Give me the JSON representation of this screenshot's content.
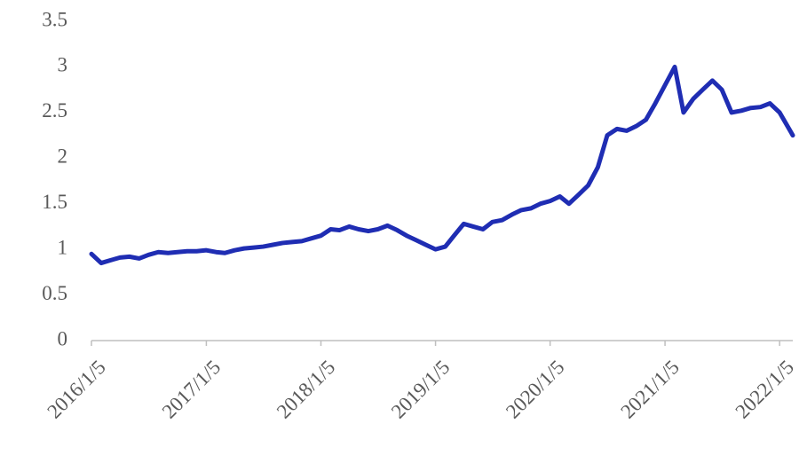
{
  "chart_data": {
    "type": "line",
    "x": [
      "2016/1/5",
      "2016/2/5",
      "2016/3/5",
      "2016/4/5",
      "2016/5/5",
      "2016/6/5",
      "2016/7/5",
      "2016/8/5",
      "2016/9/5",
      "2016/10/5",
      "2016/11/5",
      "2016/12/5",
      "2017/1/5",
      "2017/2/5",
      "2017/3/5",
      "2017/4/5",
      "2017/5/5",
      "2017/6/5",
      "2017/7/5",
      "2017/8/5",
      "2017/9/5",
      "2017/10/5",
      "2017/11/5",
      "2017/12/5",
      "2018/1/5",
      "2018/2/5",
      "2018/3/5",
      "2018/4/5",
      "2018/5/5",
      "2018/6/5",
      "2018/7/5",
      "2018/8/5",
      "2018/9/5",
      "2018/10/5",
      "2018/11/5",
      "2018/12/5",
      "2019/1/5",
      "2019/2/5",
      "2019/3/5",
      "2019/4/5",
      "2019/5/5",
      "2019/6/5",
      "2019/7/5",
      "2019/8/5",
      "2019/9/5",
      "2019/10/5",
      "2019/11/5",
      "2019/12/5",
      "2020/1/5",
      "2020/2/5",
      "2020/3/5",
      "2020/4/5",
      "2020/5/5",
      "2020/6/5",
      "2020/7/5",
      "2020/8/5",
      "2020/9/5",
      "2020/10/5",
      "2020/11/5",
      "2020/12/5",
      "2021/1/5",
      "2021/2/5",
      "2021/3/5",
      "2021/4/5",
      "2021/5/5",
      "2021/6/5",
      "2021/7/5",
      "2021/8/5",
      "2021/9/5",
      "2021/10/5",
      "2021/11/5",
      "2021/12/5",
      "2022/1/5",
      "2022/2/16"
    ],
    "series": [
      {
        "color": "#1f2db3",
        "values": [
          0.95,
          0.85,
          0.88,
          0.91,
          0.92,
          0.9,
          0.94,
          0.97,
          0.96,
          0.97,
          0.98,
          0.98,
          0.99,
          0.97,
          0.96,
          0.99,
          1.01,
          1.02,
          1.03,
          1.05,
          1.07,
          1.08,
          1.09,
          1.12,
          1.15,
          1.22,
          1.21,
          1.25,
          1.22,
          1.2,
          1.22,
          1.26,
          1.21,
          1.15,
          1.1,
          1.05,
          1.0,
          1.03,
          1.15,
          1.28,
          1.25,
          1.22,
          1.3,
          1.32,
          1.38,
          1.43,
          1.45,
          1.5,
          1.53,
          1.58,
          1.5,
          1.6,
          1.7,
          1.9,
          2.25,
          2.32,
          2.3,
          2.35,
          2.42,
          2.6,
          2.8,
          3.0,
          2.5,
          2.65,
          2.75,
          2.85,
          2.75,
          2.5,
          2.52,
          2.55,
          2.56,
          2.6,
          2.5,
          2.25
        ]
      }
    ],
    "xlim": [
      "2016/1/5",
      "2022/2/16"
    ],
    "xticks": [
      "2016/1/5",
      "2017/1/5",
      "2018/1/5",
      "2019/1/5",
      "2020/1/5",
      "2021/1/5",
      "2022/1/5"
    ],
    "ylim": [
      0,
      3.5
    ],
    "yticks": [
      0,
      0.5,
      1,
      1.5,
      2,
      2.5,
      3,
      3.5
    ]
  }
}
